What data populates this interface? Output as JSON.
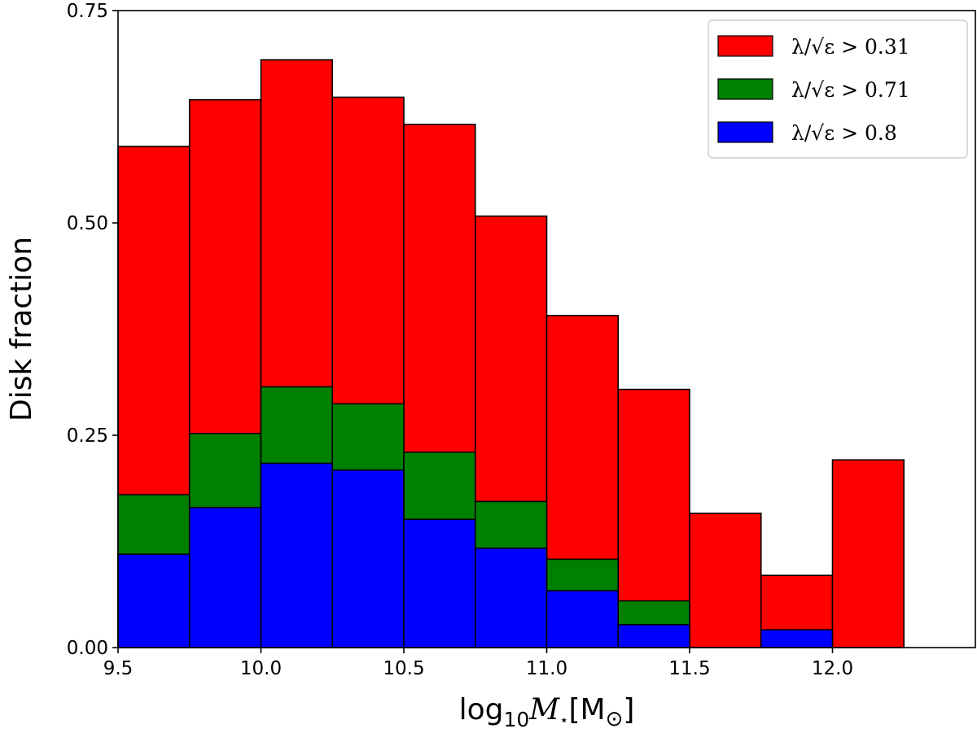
{
  "chart_data": {
    "type": "bar",
    "stacked_overlay": true,
    "bin_edges": [
      9.5,
      9.75,
      10.0,
      10.25,
      10.5,
      10.75,
      11.0,
      11.25,
      11.5,
      11.75,
      12.0,
      12.25
    ],
    "xlim": [
      9.5,
      12.5
    ],
    "ylim": [
      0,
      0.75
    ],
    "xticks": [
      9.5,
      10.0,
      10.5,
      11.0,
      11.5,
      12.0
    ],
    "xtick_labels": [
      "9.5",
      "10.0",
      "10.5",
      "11.0",
      "11.5",
      "12.0"
    ],
    "yticks": [
      0.0,
      0.25,
      0.5,
      0.75
    ],
    "ytick_labels": [
      "0.00",
      "0.25",
      "0.50",
      "0.75"
    ],
    "xlabel": "log₁₀M⋆[M⊙]",
    "xlabel_parts": {
      "log": "log",
      "sub": "10",
      "m": "M",
      "star": "⋆",
      "unit_open": "[M",
      "sun": "⊙",
      "unit_close": "]"
    },
    "ylabel": "Disk fraction",
    "legend_position": "top-right",
    "series": [
      {
        "name": "λ/√ε > 0.31",
        "color": "#ff0000",
        "values": [
          0.59,
          0.645,
          0.692,
          0.648,
          0.616,
          0.508,
          0.391,
          0.304,
          0.158,
          0.085,
          0.221
        ]
      },
      {
        "name": "λ/√ε > 0.71",
        "color": "#008000",
        "values": [
          0.18,
          0.252,
          0.307,
          0.287,
          0.23,
          0.172,
          0.104,
          0.055,
          0.0,
          0.0,
          0.0
        ]
      },
      {
        "name": "λ/√ε > 0.8",
        "color": "#0000ff",
        "values": [
          0.11,
          0.165,
          0.217,
          0.209,
          0.151,
          0.117,
          0.067,
          0.027,
          0.0,
          0.021,
          0.0
        ]
      }
    ]
  }
}
